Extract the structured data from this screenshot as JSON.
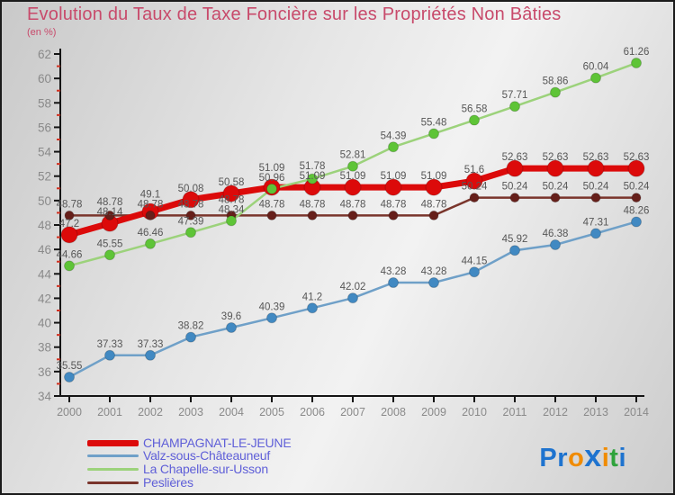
{
  "chart_data": {
    "type": "line",
    "title": "Evolution du Taux de Taxe Foncière sur les Propriétés Non Bâties",
    "subtitle": "(en %)",
    "x": [
      2000,
      2001,
      2002,
      2003,
      2004,
      2005,
      2006,
      2007,
      2008,
      2009,
      2010,
      2011,
      2012,
      2013,
      2014
    ],
    "xlabel": "",
    "ylabel": "",
    "ylim": [
      34,
      62
    ],
    "ytick_major_step": 2,
    "ytick_minor_step": 1,
    "grid": false,
    "legend_position": "bottom-left",
    "data_labels_shown": true,
    "series": [
      {
        "name": "CHAMPAGNAT-LE-JEUNE",
        "line_color": "#dc0a0a",
        "marker_color": "#dc0a0a",
        "line_width": 7,
        "marker_radius": 9,
        "values": [
          47.2,
          48.14,
          49.1,
          50.08,
          50.58,
          51.09,
          51.09,
          51.09,
          51.09,
          51.09,
          51.6,
          52.63,
          52.63,
          52.63,
          52.63
        ]
      },
      {
        "name": "Valz-sous-Châteauneuf",
        "line_color": "#6fa0c8",
        "marker_color": "#4189c2",
        "line_width": 2.5,
        "marker_radius": 5.5,
        "values": [
          35.55,
          37.33,
          37.33,
          38.82,
          39.6,
          40.39,
          41.2,
          42.02,
          43.28,
          43.28,
          44.15,
          45.92,
          46.38,
          47.31,
          48.26
        ]
      },
      {
        "name": "La Chapelle-sur-Usson",
        "line_color": "#9cd27b",
        "marker_color": "#5ec437",
        "line_width": 2.5,
        "marker_radius": 5.5,
        "values": [
          44.66,
          45.55,
          46.46,
          47.39,
          48.34,
          50.96,
          51.78,
          52.81,
          54.39,
          55.48,
          56.58,
          57.71,
          58.86,
          60.04,
          61.26
        ]
      },
      {
        "name": "Peslières",
        "line_color": "#7a352c",
        "marker_color": "#661f1a",
        "line_width": 2.5,
        "marker_radius": 5,
        "values": [
          48.78,
          48.78,
          48.78,
          48.78,
          48.78,
          48.78,
          48.78,
          48.78,
          48.78,
          48.78,
          50.24,
          50.24,
          50.24,
          50.24,
          50.24
        ]
      }
    ]
  },
  "style": {
    "axis_color": "#141414",
    "minor_tick_color": "#d03020",
    "tick_label_color": "#8a8a8a",
    "data_label_color": "#565656",
    "legend_text_color": "#5f5fd8",
    "title_color": "#c84a6b"
  },
  "logo": {
    "text": "Proxiti",
    "letters": [
      {
        "ch": "P",
        "color": "#1e73cf",
        "x": false
      },
      {
        "ch": "r",
        "color": "#1e73cf",
        "x": false
      },
      {
        "ch": "o",
        "color": "#f08b00",
        "x": false
      },
      {
        "ch": "x",
        "color": "#1e73cf",
        "x": true
      },
      {
        "ch": "i",
        "color": "#f08b00",
        "x": false
      },
      {
        "ch": "t",
        "color": "#2fa33c",
        "x": false
      },
      {
        "ch": "i",
        "color": "#1e73cf",
        "x": false
      }
    ]
  }
}
